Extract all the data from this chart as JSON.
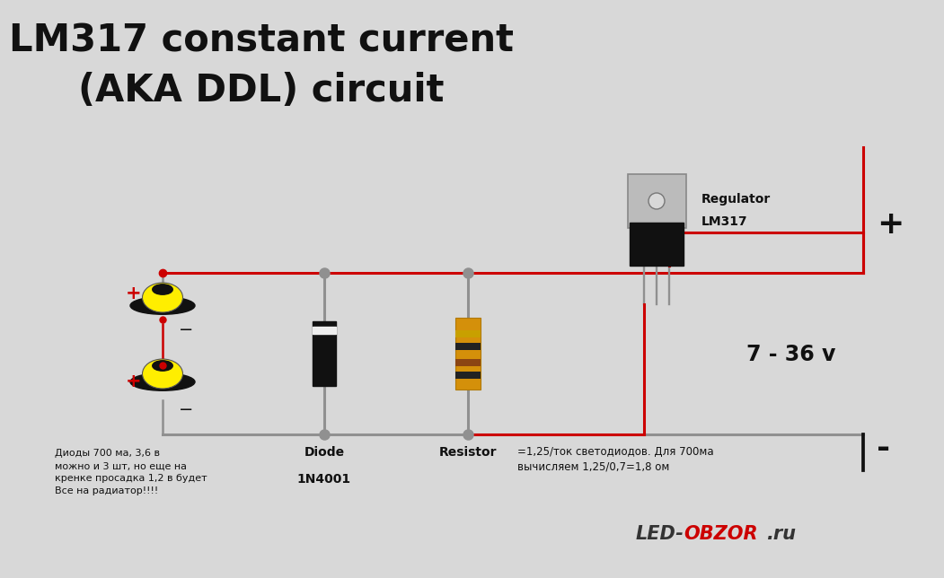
{
  "bg_color": "#d8d8d8",
  "title_line1": "LM317 constant current",
  "title_line2": "(AKA DDL) circuit",
  "title_fontsize": 30,
  "title_fontweight": "bold",
  "wire_color_red": "#cc0000",
  "wire_color_gray": "#909090",
  "wire_color_black": "#111111",
  "node_color": "#909090",
  "text_color": "#111111",
  "voltage_text": "7 - 36 v",
  "plus_text": "+",
  "minus_text": "-",
  "regulator_label1": "Regulator",
  "regulator_label2": "LM317",
  "diode_label1": "Diode",
  "diode_label2": "1N4001",
  "resistor_label": "Resistor",
  "formula_text": "=1,25/ток светодиодов. Для 700ма\nвычисляем 1,25/0,7=1,8 ом",
  "led_note": "Диоды 700 ма, 3,6 в\nможно и 3 шт, но еще на\nкренке просадка 1,2 в будет\nВсе на радиатор!!!!",
  "watermark_color_led": "#333333",
  "watermark_color_obzor": "#cc0000"
}
